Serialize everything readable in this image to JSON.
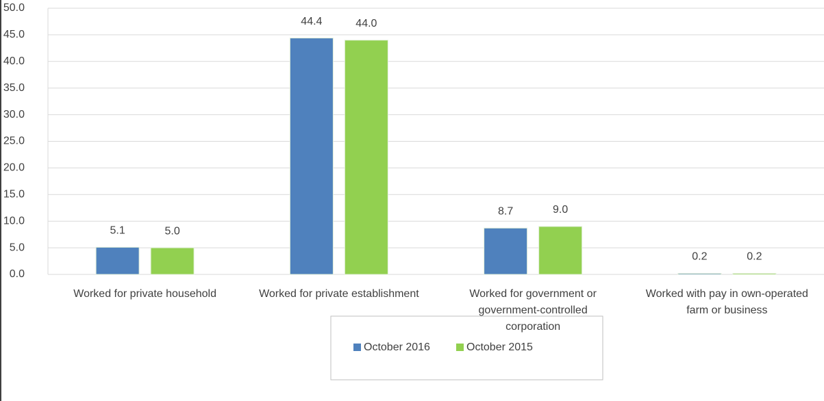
{
  "chart_data": {
    "type": "bar",
    "categories": [
      "Worked for private household",
      "Worked for private establishment",
      "Worked for government or government-controlled corporation",
      "Worked with pay in own-operated farm or business"
    ],
    "series": [
      {
        "name": "October 2016",
        "color": "#4f81bd",
        "values": [
          5.1,
          44.4,
          8.7,
          0.2
        ],
        "value_labels": [
          "5.1",
          "44.4",
          "8.7",
          "0.2"
        ]
      },
      {
        "name": "October 2015",
        "color": "#92d050",
        "values": [
          5.0,
          44.0,
          9.0,
          0.2
        ],
        "value_labels": [
          "5.0",
          "44.0",
          "9.0",
          "0.2"
        ]
      }
    ],
    "ylim": [
      0,
      50
    ],
    "yticks": [
      {
        "value": 0,
        "label": "0.0"
      },
      {
        "value": 5,
        "label": "5.0"
      },
      {
        "value": 10,
        "label": "10.0"
      },
      {
        "value": 15,
        "label": "15.0"
      },
      {
        "value": 20,
        "label": "20.0"
      },
      {
        "value": 25,
        "label": "25.0"
      },
      {
        "value": 30,
        "label": "30.0"
      },
      {
        "value": 35,
        "label": "35.0"
      },
      {
        "value": 40,
        "label": "40.0"
      },
      {
        "value": 45,
        "label": "45.0"
      },
      {
        "value": 50,
        "label": "50.0"
      }
    ],
    "grid": true,
    "legend": "bottom"
  }
}
